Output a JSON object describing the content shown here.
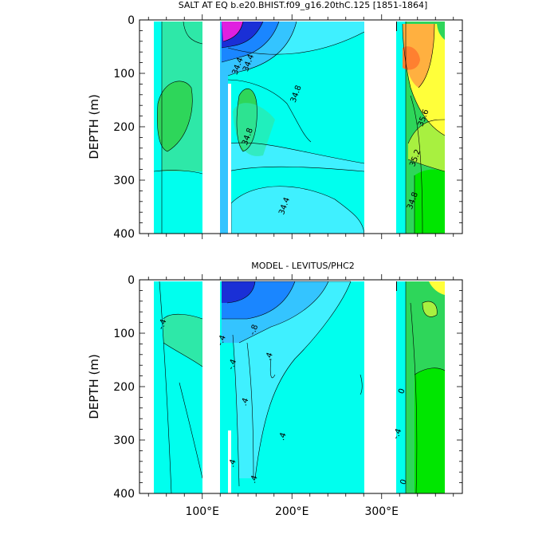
{
  "chart_data": [
    {
      "type": "heatmap",
      "title": "SALT AT EQ b.e20.BHIST.f09_g16.20thC.125 [1851-1864]",
      "ylabel": "DEPTH (m)",
      "y_ticks": [
        "0",
        "100",
        "200",
        "300",
        "400"
      ],
      "ylim": [
        400,
        0
      ],
      "xlim": [
        30,
        390
      ],
      "x_tick_labels": [],
      "land_gaps": [
        [
          97,
          118
        ],
        [
          130,
          132
        ],
        [
          278,
          313
        ]
      ],
      "contour_labels": [
        {
          "text": "34.4",
          "x": 142,
          "y": 88
        },
        {
          "text": "34.4",
          "x": 154,
          "y": 82
        },
        {
          "text": "34.8",
          "x": 207,
          "y": 140
        },
        {
          "text": "34.8",
          "x": 153,
          "y": 220
        },
        {
          "text": "34.4",
          "x": 194,
          "y": 350
        },
        {
          "text": "35.6",
          "x": 349,
          "y": 185
        },
        {
          "text": "35.2",
          "x": 340,
          "y": 260
        },
        {
          "text": "34.8",
          "x": 337,
          "y": 340
        }
      ],
      "features": [
        {
          "kind": "band",
          "x": [
            39,
            97
          ],
          "y": [
            0,
            400
          ],
          "value": "cyan"
        },
        {
          "kind": "blob",
          "x": [
            45,
            70
          ],
          "y": [
            100,
            180
          ],
          "value": "green"
        },
        {
          "kind": "band",
          "x": [
            118,
            278
          ],
          "y": [
            0,
            400
          ],
          "value": "cyan"
        },
        {
          "kind": "blob",
          "x": [
            120,
            175
          ],
          "y": [
            0,
            80
          ],
          "value": "blue"
        },
        {
          "kind": "blob",
          "x": [
            122,
            148
          ],
          "y": [
            0,
            30
          ],
          "value": "magenta"
        },
        {
          "kind": "blob",
          "x": [
            134,
            160
          ],
          "y": [
            120,
            200
          ],
          "value": "green"
        },
        {
          "kind": "band",
          "x": [
            313,
            365
          ],
          "y": [
            0,
            400
          ],
          "value": "green"
        },
        {
          "kind": "blob",
          "x": [
            320,
            365
          ],
          "y": [
            0,
            200
          ],
          "value": "yellow"
        },
        {
          "kind": "blob",
          "x": [
            325,
            345
          ],
          "y": [
            40,
            110
          ],
          "value": "orange"
        }
      ]
    },
    {
      "type": "heatmap",
      "title": "MODEL - LEVITUS/PHC2",
      "ylabel": "DEPTH (m)",
      "y_ticks": [
        "0",
        "100",
        "200",
        "300",
        "400"
      ],
      "ylim": [
        400,
        0
      ],
      "xlim": [
        30,
        390
      ],
      "x_tick_labels": [
        "100°E",
        "200°E",
        "300°E"
      ],
      "x_tick_values": [
        100,
        200,
        300
      ],
      "land_gaps": [
        [
          97,
          118
        ],
        [
          130,
          132
        ],
        [
          278,
          313
        ]
      ],
      "contour_labels": [
        {
          "text": "-.4",
          "x": 58,
          "y": 85
        },
        {
          "text": "-.8",
          "x": 160,
          "y": 95
        },
        {
          "text": "-.4",
          "x": 124,
          "y": 115
        },
        {
          "text": "-.4",
          "x": 136,
          "y": 160
        },
        {
          "text": ".4",
          "x": 177,
          "y": 145
        },
        {
          "text": ".4",
          "x": 150,
          "y": 230
        },
        {
          "text": ".4",
          "x": 192,
          "y": 295
        },
        {
          "text": ".4",
          "x": 136,
          "y": 345
        },
        {
          "text": ".4",
          "x": 160,
          "y": 375
        },
        {
          "text": "0",
          "x": 325,
          "y": 210
        },
        {
          "text": "-.4",
          "x": 320,
          "y": 290
        },
        {
          "text": "0",
          "x": 327,
          "y": 380
        }
      ],
      "features": [
        {
          "kind": "band",
          "x": [
            39,
            97
          ],
          "y": [
            0,
            400
          ],
          "value": "cyan"
        },
        {
          "kind": "band",
          "x": [
            118,
            278
          ],
          "y": [
            0,
            400
          ],
          "value": "cyan"
        },
        {
          "kind": "blob",
          "x": [
            120,
            220
          ],
          "y": [
            0,
            90
          ],
          "value": "blue"
        },
        {
          "kind": "blob",
          "x": [
            122,
            148
          ],
          "y": [
            0,
            30
          ],
          "value": "darkblue"
        },
        {
          "kind": "band",
          "x": [
            313,
            365
          ],
          "y": [
            0,
            400
          ],
          "value": "green"
        },
        {
          "kind": "blob",
          "x": [
            340,
            365
          ],
          "y": [
            0,
            25
          ],
          "value": "yellow"
        }
      ]
    }
  ],
  "colors": {
    "cyan": "#00ffee",
    "lightcyan": "#3ff0ff",
    "skyblue": "#34c4ff",
    "blue": "#1a86ff",
    "darkblue": "#1a2fd6",
    "magenta": "#e020e0",
    "seagreen": "#2ee8a8",
    "green": "#2ed65a",
    "lime": "#00e600",
    "yellowgreen": "#a8f040",
    "yellow": "#ffff3a",
    "orange": "#ffb040",
    "darkorange": "#ff8030",
    "land": "#ffffff",
    "black": "#000000"
  }
}
